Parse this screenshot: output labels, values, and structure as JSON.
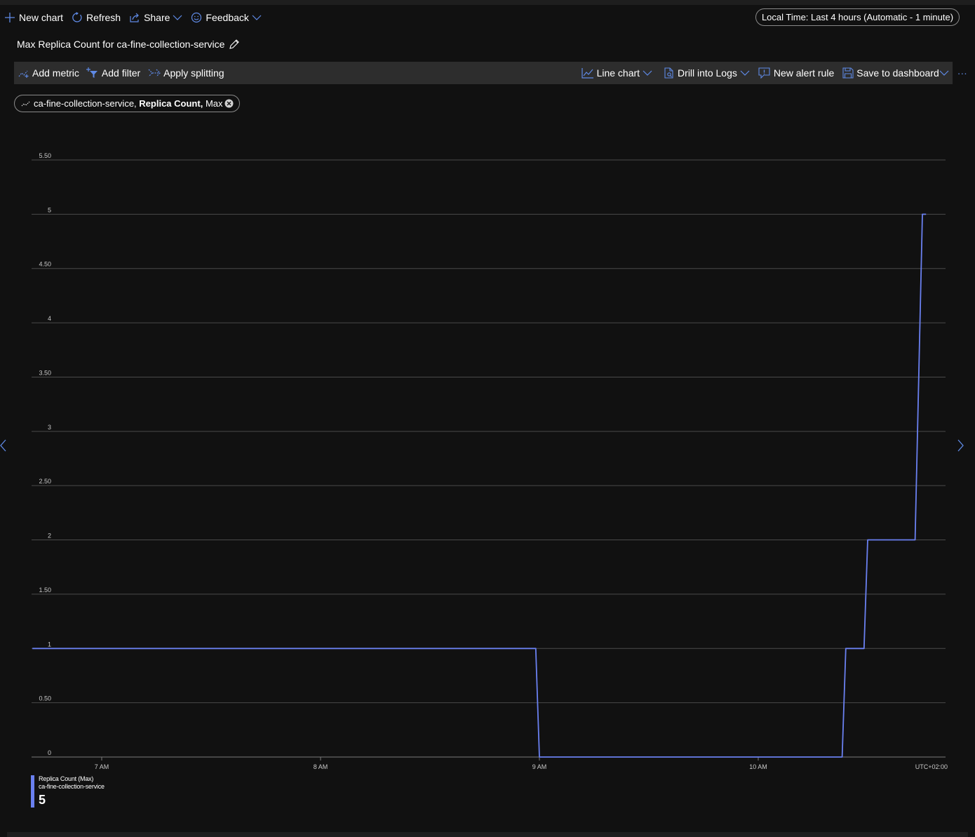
{
  "command_bar": {
    "new_chart": "New chart",
    "refresh": "Refresh",
    "share": "Share",
    "feedback": "Feedback"
  },
  "time_range": "Local Time: Last 4 hours (Automatic - 1 minute)",
  "chart_title": "Max Replica Count for ca-fine-collection-service",
  "toolbar": {
    "add_metric": "Add metric",
    "add_filter": "Add filter",
    "apply_splitting": "Apply splitting",
    "line_chart": "Line chart",
    "drill_into_logs": "Drill into Logs",
    "new_alert_rule": "New alert rule",
    "save_to_dashboard": "Save to dashboard",
    "more": "···"
  },
  "metric_pill": {
    "resource": "ca-fine-collection-service,",
    "metric": "Replica Count,",
    "aggregation": "Max"
  },
  "colors": {
    "series": "#6a80f0",
    "accent": "#5f8ae6"
  },
  "legend": {
    "metric": "Replica Count (Max)",
    "resource": "ca-fine-collection-service",
    "value": "5"
  },
  "chart_data": {
    "type": "line",
    "title": "",
    "xlabel": "",
    "ylabel": "",
    "timezone": "UTC+02:00",
    "x_ticks": [
      {
        "time": "07:00",
        "label": "7 AM"
      },
      {
        "time": "08:00",
        "label": "8 AM"
      },
      {
        "time": "09:00",
        "label": "9 AM"
      },
      {
        "time": "10:00",
        "label": "10 AM"
      }
    ],
    "xlim": [
      "06:35",
      "10:40"
    ],
    "y_ticks": [
      {
        "value": 0,
        "label": "0"
      },
      {
        "value": 0.5,
        "label": "0.50"
      },
      {
        "value": 1,
        "label": "1"
      },
      {
        "value": 1.5,
        "label": "1.50"
      },
      {
        "value": 2,
        "label": "2"
      },
      {
        "value": 2.5,
        "label": "2.50"
      },
      {
        "value": 3,
        "label": "3"
      },
      {
        "value": 3.5,
        "label": "3.50"
      },
      {
        "value": 4,
        "label": "4"
      },
      {
        "value": 4.5,
        "label": "4.50"
      },
      {
        "value": 5,
        "label": "5"
      },
      {
        "value": 5.5,
        "label": "5.50"
      }
    ],
    "ylim": [
      0,
      5.5
    ],
    "grid": true,
    "series": [
      {
        "name": "Replica Count (Max)",
        "points": [
          {
            "x": "06:41",
            "y": 1
          },
          {
            "x": "08:59",
            "y": 1
          },
          {
            "x": "09:00",
            "y": 0
          },
          {
            "x": "10:23",
            "y": 0
          },
          {
            "x": "10:24",
            "y": 1
          },
          {
            "x": "10:29",
            "y": 1
          },
          {
            "x": "10:30",
            "y": 2
          },
          {
            "x": "10:43",
            "y": 2
          },
          {
            "x": "10:45",
            "y": 5
          },
          {
            "x": "10:46",
            "y": 5
          }
        ]
      }
    ]
  }
}
